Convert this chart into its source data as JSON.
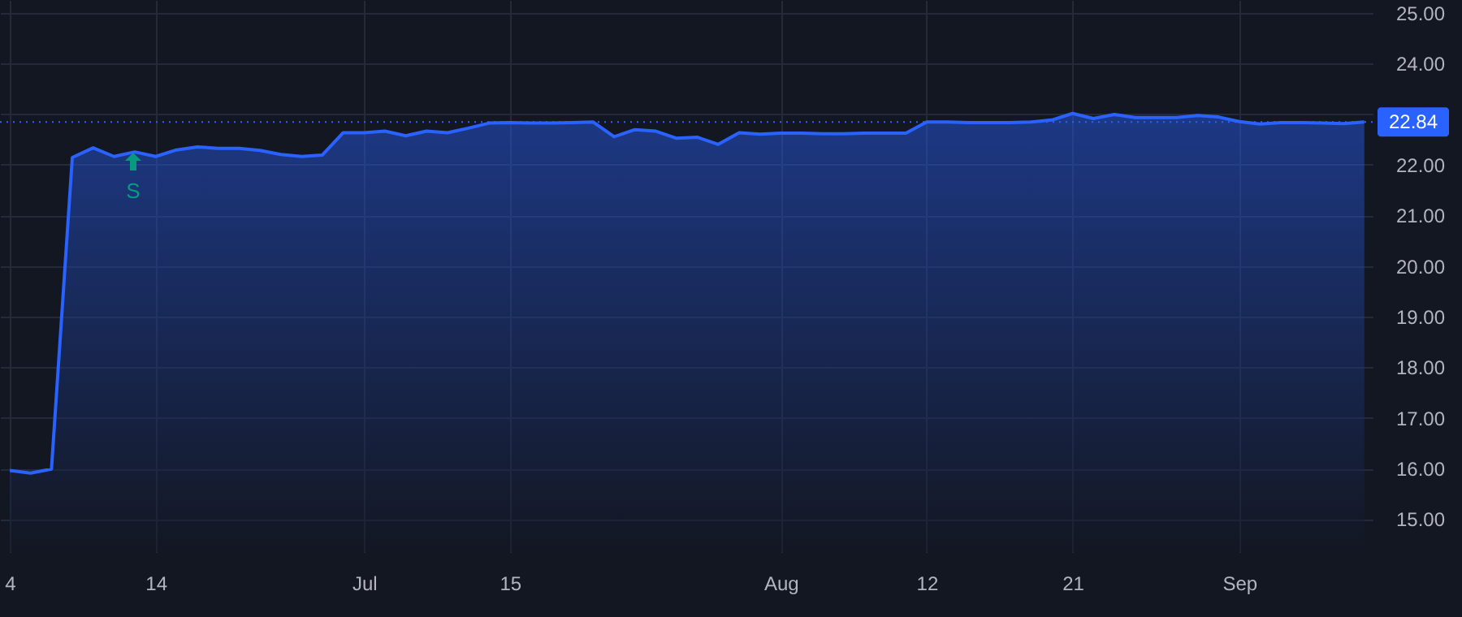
{
  "chart_data": {
    "type": "area",
    "categories": [
      "4",
      null,
      null,
      null,
      null,
      null,
      null,
      "14",
      null,
      null,
      null,
      null,
      null,
      null,
      null,
      null,
      null,
      "Jul",
      null,
      null,
      null,
      null,
      null,
      null,
      "15",
      null,
      null,
      null,
      null,
      null,
      null,
      null,
      null,
      null,
      null,
      null,
      null,
      "Aug",
      null,
      null,
      null,
      null,
      null,
      null,
      "12",
      null,
      null,
      null,
      null,
      null,
      null,
      "21",
      null,
      null,
      null,
      null,
      null,
      null,
      null,
      "Sep",
      null,
      null,
      null,
      null,
      null,
      null
    ],
    "series": [
      {
        "color": "#2962ff",
        "values": [
          15.96,
          15.91,
          15.99,
          22.14,
          22.33,
          22.16,
          22.25,
          22.16,
          22.29,
          22.35,
          22.32,
          22.32,
          22.28,
          22.2,
          22.16,
          22.19,
          22.63,
          22.63,
          22.66,
          22.57,
          22.66,
          22.63,
          22.72,
          22.82,
          22.83,
          22.82,
          22.82,
          22.83,
          22.84,
          22.55,
          22.69,
          22.66,
          22.52,
          22.54,
          22.4,
          22.63,
          22.6,
          22.62,
          22.62,
          22.61,
          22.61,
          22.62,
          22.62,
          22.62,
          22.84,
          22.84,
          22.83,
          22.83,
          22.83,
          22.84,
          22.88,
          23.01,
          22.91,
          22.99,
          22.93,
          22.93,
          22.93,
          22.97,
          22.94,
          22.85,
          22.8,
          22.83,
          22.83,
          22.82,
          22.81,
          22.84
        ]
      }
    ],
    "ylim": [
      14.35,
      25.25
    ],
    "yticks": [
      {
        "value": 15,
        "label": "15.00"
      },
      {
        "value": 16,
        "label": "16.00"
      },
      {
        "value": 17,
        "label": "17.00"
      },
      {
        "value": 18,
        "label": "18.00"
      },
      {
        "value": 19,
        "label": "19.00"
      },
      {
        "value": 20,
        "label": "20.00"
      },
      {
        "value": 21,
        "label": "21.00"
      },
      {
        "value": 22,
        "label": "22.00"
      },
      {
        "value": 23,
        "label": null
      },
      {
        "value": 24,
        "label": "24.00"
      },
      {
        "value": 25,
        "label": "25.00"
      }
    ],
    "ref_lines": [
      {
        "axis": "y",
        "value": 22.84,
        "label": "22.84",
        "color": "#2962ff",
        "line_style": "dotted"
      }
    ],
    "annotations": [
      "S"
    ],
    "grid": true
  }
}
